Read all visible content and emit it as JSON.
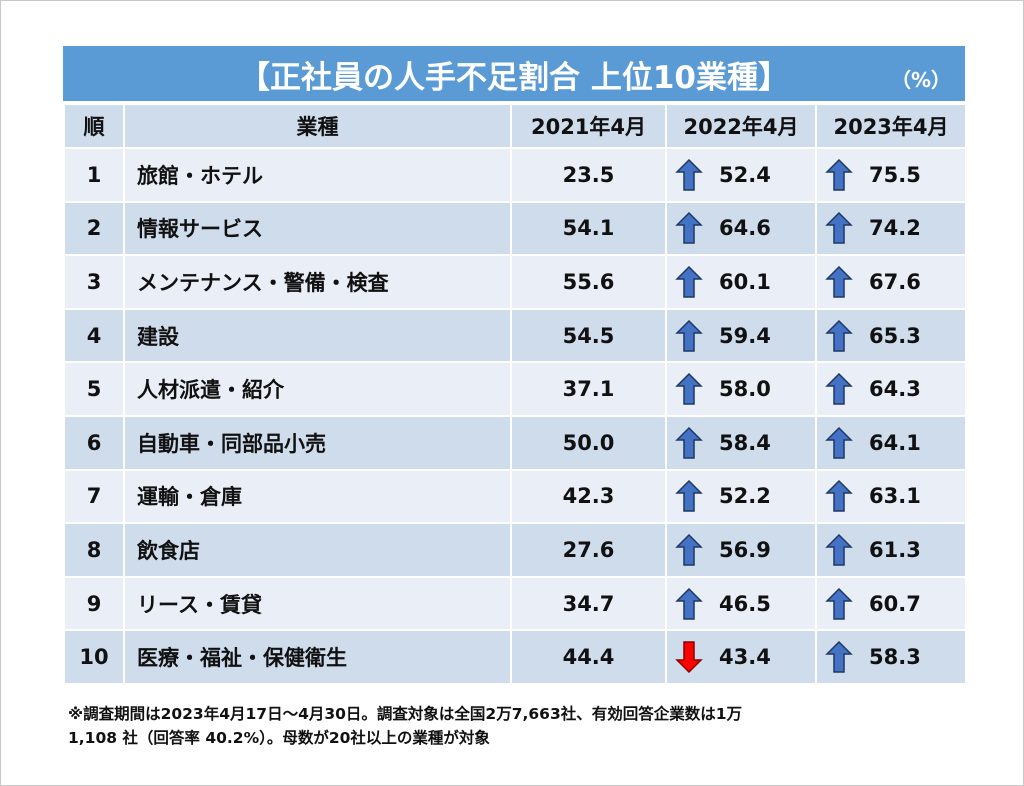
{
  "title": "【正社員の人手不足割合 上位10業種】",
  "unit": "（%）",
  "columns": [
    "順",
    "業種",
    "2021年4月",
    "2022年4月",
    "2023年4月"
  ],
  "colors": {
    "title_bg": "#5b9bd5",
    "up_arrow": "#4472c4",
    "down_arrow": "#ff0000"
  },
  "rows": [
    {
      "rank": "1",
      "industry": "旅館・ホテル",
      "y2021": "23.5",
      "y2022": "52.4",
      "y2022_trend": "up",
      "y2023": "75.5",
      "y2023_trend": "up"
    },
    {
      "rank": "2",
      "industry": "情報サービス",
      "y2021": "54.1",
      "y2022": "64.6",
      "y2022_trend": "up",
      "y2023": "74.2",
      "y2023_trend": "up"
    },
    {
      "rank": "3",
      "industry": "メンテナンス・警備・検査",
      "y2021": "55.6",
      "y2022": "60.1",
      "y2022_trend": "up",
      "y2023": "67.6",
      "y2023_trend": "up"
    },
    {
      "rank": "4",
      "industry": "建設",
      "y2021": "54.5",
      "y2022": "59.4",
      "y2022_trend": "up",
      "y2023": "65.3",
      "y2023_trend": "up"
    },
    {
      "rank": "5",
      "industry": "人材派遣・紹介",
      "y2021": "37.1",
      "y2022": "58.0",
      "y2022_trend": "up",
      "y2023": "64.3",
      "y2023_trend": "up"
    },
    {
      "rank": "6",
      "industry": "自動車・同部品小売",
      "y2021": "50.0",
      "y2022": "58.4",
      "y2022_trend": "up",
      "y2023": "64.1",
      "y2023_trend": "up"
    },
    {
      "rank": "7",
      "industry": "運輸・倉庫",
      "y2021": "42.3",
      "y2022": "52.2",
      "y2022_trend": "up",
      "y2023": "63.1",
      "y2023_trend": "up"
    },
    {
      "rank": "8",
      "industry": "飲食店",
      "y2021": "27.6",
      "y2022": "56.9",
      "y2022_trend": "up",
      "y2023": "61.3",
      "y2023_trend": "up"
    },
    {
      "rank": "9",
      "industry": "リース・賃貸",
      "y2021": "34.7",
      "y2022": "46.5",
      "y2022_trend": "up",
      "y2023": "60.7",
      "y2023_trend": "up"
    },
    {
      "rank": "10",
      "industry": "医療・福祉・保健衛生",
      "y2021": "44.4",
      "y2022": "43.4",
      "y2022_trend": "down",
      "y2023": "58.3",
      "y2023_trend": "up"
    }
  ],
  "note_line1": "※調査期間は2023年4月17日～4月30日。調査対象は全国2万7,663社、有効回答企業数は1万",
  "note_line2": "1,108 社（回答率 40.2%）。母数が20社以上の業種が対象"
}
